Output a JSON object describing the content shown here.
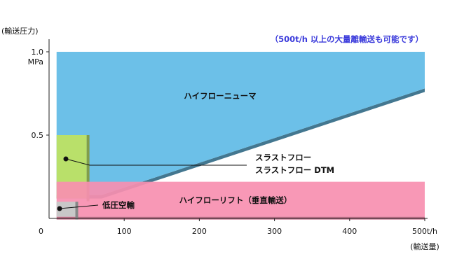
{
  "chart_data": {
    "type": "area",
    "xlabel": "(輸送量)",
    "ylabel": "(輸送圧力)",
    "xlim": [
      0,
      500
    ],
    "ylim": [
      0,
      1.0
    ],
    "x_ticks": [
      "0",
      "100",
      "200",
      "300",
      "400",
      "500t/h"
    ],
    "y_ticks": [
      "0.5",
      "1.0",
      "MPa"
    ],
    "note": "（500t/h 以上の大量離輸送も可能です）",
    "regions": [
      {
        "name": "ハイフローニューマ",
        "color": "#6cc0e8",
        "polygon": [
          [
            10,
            1.0
          ],
          [
            500,
            1.0
          ],
          [
            500,
            0.78
          ],
          [
            70,
            0.14
          ],
          [
            10,
            0.14
          ]
        ]
      },
      {
        "name": "ハイフローリフト（垂直輸送）",
        "color": "#f78fb0",
        "x_range": [
          10,
          500
        ],
        "y_range": [
          0.01,
          0.22
        ]
      },
      {
        "name": "スラストフロー",
        "name2": "スラストフロー DTM",
        "color": "#b9e06a",
        "x_range": [
          10,
          50
        ],
        "y_range": [
          0.12,
          0.5
        ]
      },
      {
        "name": "低圧空輸",
        "color": "#c8c8c8",
        "x_range": [
          10,
          35
        ],
        "y_range": [
          0.01,
          0.1
        ]
      }
    ]
  }
}
